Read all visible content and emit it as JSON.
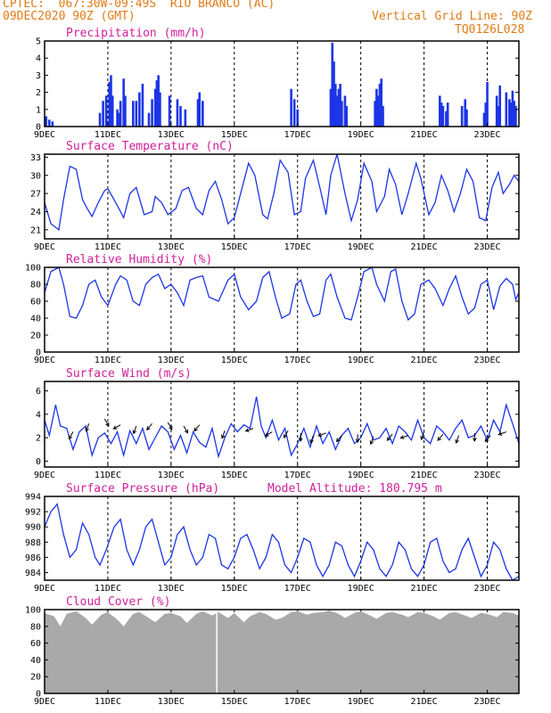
{
  "header": {
    "line1_left": "CPTEC:  067:30W-09:49S  RIO BRANCO (AC)",
    "line2_left": "09DEC2020 90Z (GMT)",
    "line2_right": "Vertical Grid Line: 90Z",
    "line3_right": "TQ0126L028"
  },
  "colors": {
    "header": "#e07b17",
    "title": "#d0209a",
    "series": "#1c35e6",
    "cloud": "#a9a9a9"
  },
  "chart_data": [
    {
      "id": "precip",
      "type": "bar",
      "title": "Precipitation (mm/h)",
      "x_ticks": [
        "9DEC",
        "11DEC",
        "13DEC",
        "15DEC",
        "17DEC",
        "19DEC",
        "21DEC",
        "23DEC"
      ],
      "ylim": [
        0,
        5
      ],
      "yticks": [
        0,
        1,
        2,
        3,
        4,
        5
      ],
      "x_days": [
        9.05,
        9.15,
        9.25,
        10.75,
        10.85,
        10.95,
        11.05,
        11.1,
        11.15,
        11.3,
        11.35,
        11.4,
        11.5,
        11.55,
        11.8,
        11.9,
        12.0,
        12.1,
        12.3,
        12.4,
        12.5,
        12.55,
        12.6,
        12.65,
        12.95,
        13.2,
        13.3,
        13.45,
        13.85,
        13.9,
        14.0,
        16.8,
        16.9,
        17.0,
        18.05,
        18.1,
        18.15,
        18.2,
        18.25,
        18.3,
        18.35,
        18.4,
        18.5,
        18.55,
        19.45,
        19.5,
        19.55,
        19.6,
        19.65,
        19.7,
        21.5,
        21.55,
        21.6,
        21.7,
        21.75,
        22.2,
        22.3,
        22.35,
        22.9,
        22.95,
        23.0,
        23.3,
        23.35,
        23.4,
        23.6,
        23.7,
        23.75,
        23.8,
        23.85,
        23.9
      ],
      "values": [
        0.6,
        0.4,
        0.3,
        0.8,
        1.5,
        1.8,
        2.6,
        3.0,
        1.8,
        1.0,
        0.8,
        1.5,
        2.8,
        1.8,
        1.5,
        1.5,
        2.0,
        2.5,
        0.8,
        1.6,
        2.2,
        2.7,
        3.0,
        2.0,
        1.8,
        1.6,
        1.2,
        1.0,
        1.6,
        2.0,
        1.5,
        2.2,
        1.6,
        1.0,
        2.2,
        4.9,
        3.8,
        2.5,
        1.8,
        2.2,
        2.5,
        1.5,
        1.8,
        1.2,
        1.5,
        2.2,
        1.8,
        2.5,
        2.8,
        1.2,
        1.8,
        1.4,
        1.2,
        0.9,
        1.4,
        1.2,
        1.6,
        1.0,
        0.8,
        1.4,
        2.6,
        1.8,
        1.2,
        2.4,
        2.0,
        1.6,
        1.4,
        2.1,
        1.5,
        1.2
      ]
    },
    {
      "id": "temp",
      "type": "line",
      "title": "Surface Temperature (nC)",
      "x_ticks": [
        "9DEC",
        "11DEC",
        "13DEC",
        "15DEC",
        "17DEC",
        "19DEC",
        "21DEC",
        "23DEC"
      ],
      "ylim": [
        19.5,
        33.5
      ],
      "yticks": [
        21,
        24,
        27,
        30,
        33
      ],
      "x": [
        9.0,
        9.2,
        9.45,
        9.6,
        9.8,
        10.0,
        10.2,
        10.35,
        10.5,
        10.7,
        10.9,
        11.0,
        11.25,
        11.4,
        11.5,
        11.7,
        11.9,
        12.15,
        12.4,
        12.5,
        12.7,
        12.9,
        13.15,
        13.35,
        13.55,
        13.8,
        14.0,
        14.2,
        14.4,
        14.6,
        14.8,
        15.0,
        15.25,
        15.45,
        15.65,
        15.9,
        16.05,
        16.25,
        16.45,
        16.7,
        16.9,
        17.1,
        17.25,
        17.5,
        17.75,
        17.9,
        18.05,
        18.25,
        18.5,
        18.7,
        18.9,
        19.1,
        19.35,
        19.5,
        19.75,
        19.9,
        20.1,
        20.3,
        20.5,
        20.75,
        20.9,
        21.15,
        21.35,
        21.55,
        21.75,
        21.95,
        22.15,
        22.35,
        22.55,
        22.75,
        22.95,
        23.15,
        23.35,
        23.5,
        23.7,
        23.85,
        24.0
      ],
      "values": [
        25.5,
        22.0,
        21.0,
        26.0,
        31.5,
        31.0,
        26.0,
        24.5,
        23.2,
        25.5,
        27.5,
        27.8,
        25.5,
        24.0,
        23.0,
        27.0,
        28.0,
        23.5,
        24.0,
        26.5,
        25.5,
        23.5,
        24.5,
        27.5,
        28.0,
        24.5,
        23.5,
        27.5,
        29.0,
        26.0,
        22.0,
        23.0,
        28.0,
        32.0,
        30.0,
        23.5,
        22.8,
        27.0,
        32.5,
        30.5,
        23.5,
        24.0,
        29.5,
        32.5,
        27.0,
        23.5,
        30.0,
        33.5,
        27.0,
        22.5,
        26.0,
        32.0,
        29.0,
        24.0,
        26.5,
        31.0,
        28.5,
        23.5,
        27.0,
        32.0,
        29.5,
        23.5,
        25.5,
        30.0,
        27.5,
        24.0,
        27.0,
        31.0,
        29.0,
        23.0,
        22.5,
        28.0,
        30.5,
        27.0,
        28.5,
        30.0,
        29.0
      ]
    },
    {
      "id": "rh",
      "type": "line",
      "title": "Relative Humidity (%)",
      "x_ticks": [
        "9DEC",
        "11DEC",
        "13DEC",
        "15DEC",
        "17DEC",
        "19DEC",
        "21DEC",
        "23DEC"
      ],
      "ylim": [
        0,
        100
      ],
      "yticks": [
        0,
        20,
        40,
        60,
        80,
        100
      ],
      "x": [
        9.0,
        9.2,
        9.45,
        9.6,
        9.8,
        10.0,
        10.2,
        10.4,
        10.6,
        10.8,
        11.0,
        11.25,
        11.4,
        11.6,
        11.8,
        12.0,
        12.2,
        12.4,
        12.6,
        12.8,
        13.0,
        13.2,
        13.4,
        13.6,
        13.8,
        14.0,
        14.2,
        14.5,
        14.8,
        15.0,
        15.2,
        15.45,
        15.7,
        15.9,
        16.1,
        16.3,
        16.5,
        16.75,
        16.95,
        17.1,
        17.3,
        17.5,
        17.7,
        17.9,
        18.05,
        18.25,
        18.5,
        18.7,
        18.9,
        19.1,
        19.35,
        19.5,
        19.75,
        19.95,
        20.1,
        20.3,
        20.5,
        20.7,
        20.9,
        21.15,
        21.35,
        21.6,
        21.8,
        22.0,
        22.2,
        22.4,
        22.6,
        22.8,
        23.0,
        23.2,
        23.4,
        23.6,
        23.8,
        23.9,
        24.0
      ],
      "values": [
        70,
        95,
        100,
        80,
        42,
        40,
        55,
        80,
        85,
        65,
        55,
        80,
        90,
        85,
        60,
        55,
        80,
        88,
        92,
        75,
        80,
        70,
        55,
        85,
        88,
        90,
        65,
        60,
        85,
        92,
        65,
        50,
        60,
        88,
        95,
        65,
        40,
        45,
        80,
        85,
        60,
        42,
        45,
        85,
        92,
        65,
        40,
        38,
        65,
        95,
        100,
        80,
        60,
        95,
        98,
        60,
        38,
        45,
        80,
        85,
        75,
        55,
        75,
        90,
        65,
        45,
        52,
        80,
        85,
        50,
        78,
        87,
        80,
        62,
        70
      ]
    },
    {
      "id": "wind",
      "type": "line",
      "title": "Surface Wind (m/s)",
      "x_ticks": [
        "9DEC",
        "11DEC",
        "13DEC",
        "15DEC",
        "17DEC",
        "19DEC",
        "21DEC",
        "23DEC"
      ],
      "ylim": [
        -0.5,
        6.8
      ],
      "yticks": [
        0,
        2,
        4,
        6
      ],
      "x": [
        9.0,
        9.15,
        9.35,
        9.5,
        9.7,
        9.9,
        10.1,
        10.3,
        10.5,
        10.7,
        10.9,
        11.1,
        11.3,
        11.5,
        11.7,
        11.9,
        12.1,
        12.3,
        12.5,
        12.7,
        12.9,
        13.1,
        13.3,
        13.5,
        13.7,
        13.9,
        14.1,
        14.3,
        14.5,
        14.7,
        14.9,
        15.1,
        15.3,
        15.5,
        15.7,
        15.85,
        16.0,
        16.2,
        16.4,
        16.6,
        16.8,
        17.0,
        17.2,
        17.4,
        17.6,
        17.8,
        18.0,
        18.2,
        18.4,
        18.6,
        18.8,
        19.0,
        19.2,
        19.4,
        19.6,
        19.8,
        20.0,
        20.2,
        20.4,
        20.6,
        20.8,
        21.0,
        21.2,
        21.4,
        21.6,
        21.8,
        22.0,
        22.2,
        22.4,
        22.6,
        22.8,
        23.0,
        23.2,
        23.4,
        23.6,
        23.8,
        24.0
      ],
      "values": [
        3.5,
        2.2,
        4.8,
        3.0,
        2.8,
        1.0,
        2.5,
        3.0,
        0.5,
        2.0,
        2.4,
        1.5,
        2.5,
        0.5,
        2.6,
        1.5,
        2.8,
        1.0,
        2.0,
        3.0,
        2.5,
        1.0,
        2.2,
        0.7,
        2.5,
        1.6,
        1.2,
        2.8,
        0.4,
        2.0,
        3.2,
        2.5,
        3.1,
        2.8,
        5.5,
        3.0,
        2.0,
        3.5,
        1.8,
        2.8,
        0.5,
        1.5,
        2.8,
        1.2,
        3.0,
        1.5,
        2.5,
        1.0,
        2.2,
        2.8,
        1.5,
        2.0,
        3.2,
        1.8,
        2.0,
        2.8,
        1.5,
        3.0,
        2.5,
        1.8,
        3.5,
        2.0,
        1.5,
        3.0,
        2.5,
        1.8,
        2.8,
        3.5,
        2.0,
        2.2,
        3.0,
        1.8,
        3.5,
        2.5,
        4.8,
        3.2,
        1.5
      ]
    },
    {
      "id": "pressure",
      "type": "line",
      "title": "Surface Pressure (hPa)",
      "annotation": "Model Altitude: 180.795 m",
      "x_ticks": [
        "9DEC",
        "11DEC",
        "13DEC",
        "15DEC",
        "17DEC",
        "19DEC",
        "21DEC",
        "23DEC"
      ],
      "ylim": [
        983,
        994
      ],
      "yticks": [
        984,
        986,
        988,
        990,
        992,
        994
      ],
      "x": [
        9.0,
        9.2,
        9.4,
        9.6,
        9.8,
        10.0,
        10.2,
        10.4,
        10.6,
        10.75,
        10.95,
        11.2,
        11.4,
        11.6,
        11.8,
        12.0,
        12.2,
        12.4,
        12.6,
        12.8,
        13.0,
        13.2,
        13.4,
        13.6,
        13.8,
        14.0,
        14.2,
        14.4,
        14.6,
        14.8,
        15.0,
        15.2,
        15.4,
        15.6,
        15.8,
        16.0,
        16.2,
        16.4,
        16.6,
        16.8,
        17.0,
        17.2,
        17.4,
        17.6,
        17.8,
        18.0,
        18.2,
        18.4,
        18.6,
        18.8,
        19.0,
        19.2,
        19.4,
        19.6,
        19.8,
        20.0,
        20.2,
        20.4,
        20.6,
        20.8,
        21.0,
        21.2,
        21.4,
        21.6,
        21.8,
        22.0,
        22.2,
        22.4,
        22.6,
        22.8,
        23.0,
        23.2,
        23.4,
        23.6,
        23.8,
        24.0
      ],
      "values": [
        990,
        992,
        993,
        989,
        986,
        987,
        990.5,
        989,
        986,
        985,
        987,
        990,
        991,
        987,
        985,
        987,
        990,
        991,
        988,
        985,
        986,
        989,
        990,
        987,
        985,
        986,
        989,
        988.5,
        985,
        984.5,
        986,
        988.5,
        989,
        987,
        984.5,
        986,
        989,
        988,
        985,
        984,
        986,
        988.5,
        988,
        985,
        983.5,
        985,
        988,
        987.5,
        985,
        983.5,
        985.5,
        988,
        987,
        984.5,
        983.5,
        985,
        988,
        987,
        984.5,
        983.5,
        985,
        988,
        988.5,
        985.5,
        984,
        984.5,
        987,
        988.5,
        986,
        983.5,
        985,
        988,
        987,
        984.5,
        983,
        983.5
      ]
    },
    {
      "id": "cloud",
      "type": "area",
      "title": "Cloud Cover (%)",
      "x_ticks": [
        "9DEC",
        "11DEC",
        "13DEC",
        "15DEC",
        "17DEC",
        "19DEC",
        "21DEC",
        "23DEC"
      ],
      "ylim": [
        0,
        100
      ],
      "yticks": [
        0,
        20,
        40,
        60,
        80,
        100
      ],
      "x": [
        9.0,
        9.3,
        9.5,
        9.7,
        10.0,
        10.3,
        10.5,
        10.8,
        11.0,
        11.3,
        11.5,
        11.8,
        12.0,
        12.3,
        12.5,
        12.8,
        13.0,
        13.3,
        13.5,
        13.8,
        14.0,
        14.3,
        14.45,
        14.5,
        14.8,
        15.0,
        15.3,
        15.5,
        15.8,
        16.0,
        16.3,
        16.5,
        16.8,
        17.0,
        17.3,
        17.5,
        17.8,
        18.0,
        18.3,
        18.5,
        18.8,
        19.0,
        19.3,
        19.5,
        19.8,
        20.0,
        20.3,
        20.5,
        20.8,
        21.0,
        21.3,
        21.5,
        21.8,
        22.0,
        22.3,
        22.5,
        22.8,
        23.0,
        23.3,
        23.5,
        23.8,
        24.0
      ],
      "values": [
        96,
        92,
        80,
        95,
        98,
        90,
        82,
        94,
        97,
        88,
        80,
        95,
        97,
        90,
        85,
        95,
        96,
        92,
        84,
        95,
        98,
        93,
        96,
        97,
        90,
        96,
        85,
        92,
        97,
        95,
        88,
        90,
        97,
        98,
        94,
        96,
        97,
        99,
        95,
        90,
        96,
        98,
        93,
        89,
        96,
        97,
        94,
        91,
        97,
        96,
        92,
        88,
        96,
        97,
        93,
        90,
        96,
        95,
        91,
        97,
        96,
        93
      ]
    }
  ]
}
